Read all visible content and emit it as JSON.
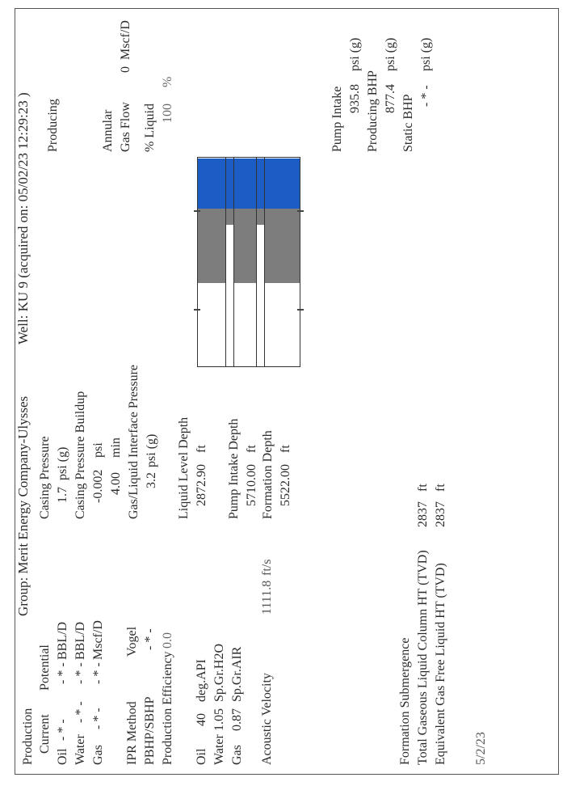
{
  "header": {
    "group": "Group: Merit Energy Company-Ulysses",
    "well": "Well: KU 9 (acquired on: 05/02/23 12:29:23 )"
  },
  "production": {
    "title": "Production",
    "col_current": "Current",
    "col_potential": "Potential",
    "rows": [
      {
        "label": "Oil",
        "current": "- * -",
        "potential": "- * -",
        "unit": "BBL/D"
      },
      {
        "label": "Water",
        "current": "- * -",
        "potential": "- * -",
        "unit": "BBL/D"
      },
      {
        "label": "Gas",
        "current": "- * -",
        "potential": "- * -",
        "unit": "Mscf/D"
      }
    ]
  },
  "ipr": {
    "method_label": "IPR Method",
    "method_value": "Vogel",
    "pbhp_label": "PBHP/SBHP",
    "pbhp_value": "- * -",
    "eff_label": "Production Efficiency",
    "eff_value": "0.0"
  },
  "fluids": [
    {
      "label": "Oil",
      "value": "40",
      "unit": "deg.API"
    },
    {
      "label": "Water",
      "value": "1.05",
      "unit": "Sp.Gr.H2O"
    },
    {
      "label": "Gas",
      "value": "0.87",
      "unit": "Sp.Gr.AIR"
    }
  ],
  "acoustic": {
    "label": "Acoustic Velocity",
    "value": "1111.8",
    "unit": "ft/s"
  },
  "pressures": {
    "casing_label": "Casing Pressure",
    "casing_value": "1.7",
    "casing_unit": "psi (g)",
    "buildup_label": "Casing Pressure Buildup",
    "buildup_value": "-0.002",
    "buildup_unit": "psi",
    "buildup_time": "4.00",
    "buildup_time_unit": "min",
    "interface_label": "Gas/Liquid Interface Pressure",
    "interface_value": "3.2",
    "interface_unit": "psi (g)"
  },
  "depths": {
    "liquid_label": "Liquid Level Depth",
    "liquid_value": "2872.90",
    "liquid_unit": "ft",
    "intake_label": "Pump Intake Depth",
    "intake_value": "5710.00",
    "intake_unit": "ft",
    "formation_label": "Formation Depth",
    "formation_value": "5522.00",
    "formation_unit": "ft"
  },
  "status": {
    "label": "Producing"
  },
  "annular": {
    "label1": "Annular",
    "label2": "Gas Flow",
    "value": "0",
    "unit": "Mscf/D",
    "liquid_label": "% Liquid",
    "liquid_value": "100",
    "liquid_unit": "%"
  },
  "bhp": {
    "intake_label": "Pump Intake",
    "intake_value": "935.8",
    "intake_unit": "psi (g)",
    "producing_label": "Producing BHP",
    "producing_value": "877.4",
    "producing_unit": "psi (g)",
    "static_label": "Static BHP",
    "static_value": "- * -",
    "static_unit": "psi (g)"
  },
  "bottom": {
    "submergence_label": "Formation Submergence",
    "total_label": "Total Gaseous Liquid Column HT (TVD)",
    "total_value": "2837",
    "total_unit": "ft",
    "equiv_label": "Equivalent Gas Free Liquid HT (TVD)",
    "equiv_value": "2837",
    "equiv_unit": "ft",
    "date": "5/2/23"
  },
  "wellbore": {
    "liquid_level_fraction": 0.5,
    "colors": {
      "gas": "#7d7d7d",
      "liquid": "#1c5cc5",
      "border": "#333333"
    }
  }
}
